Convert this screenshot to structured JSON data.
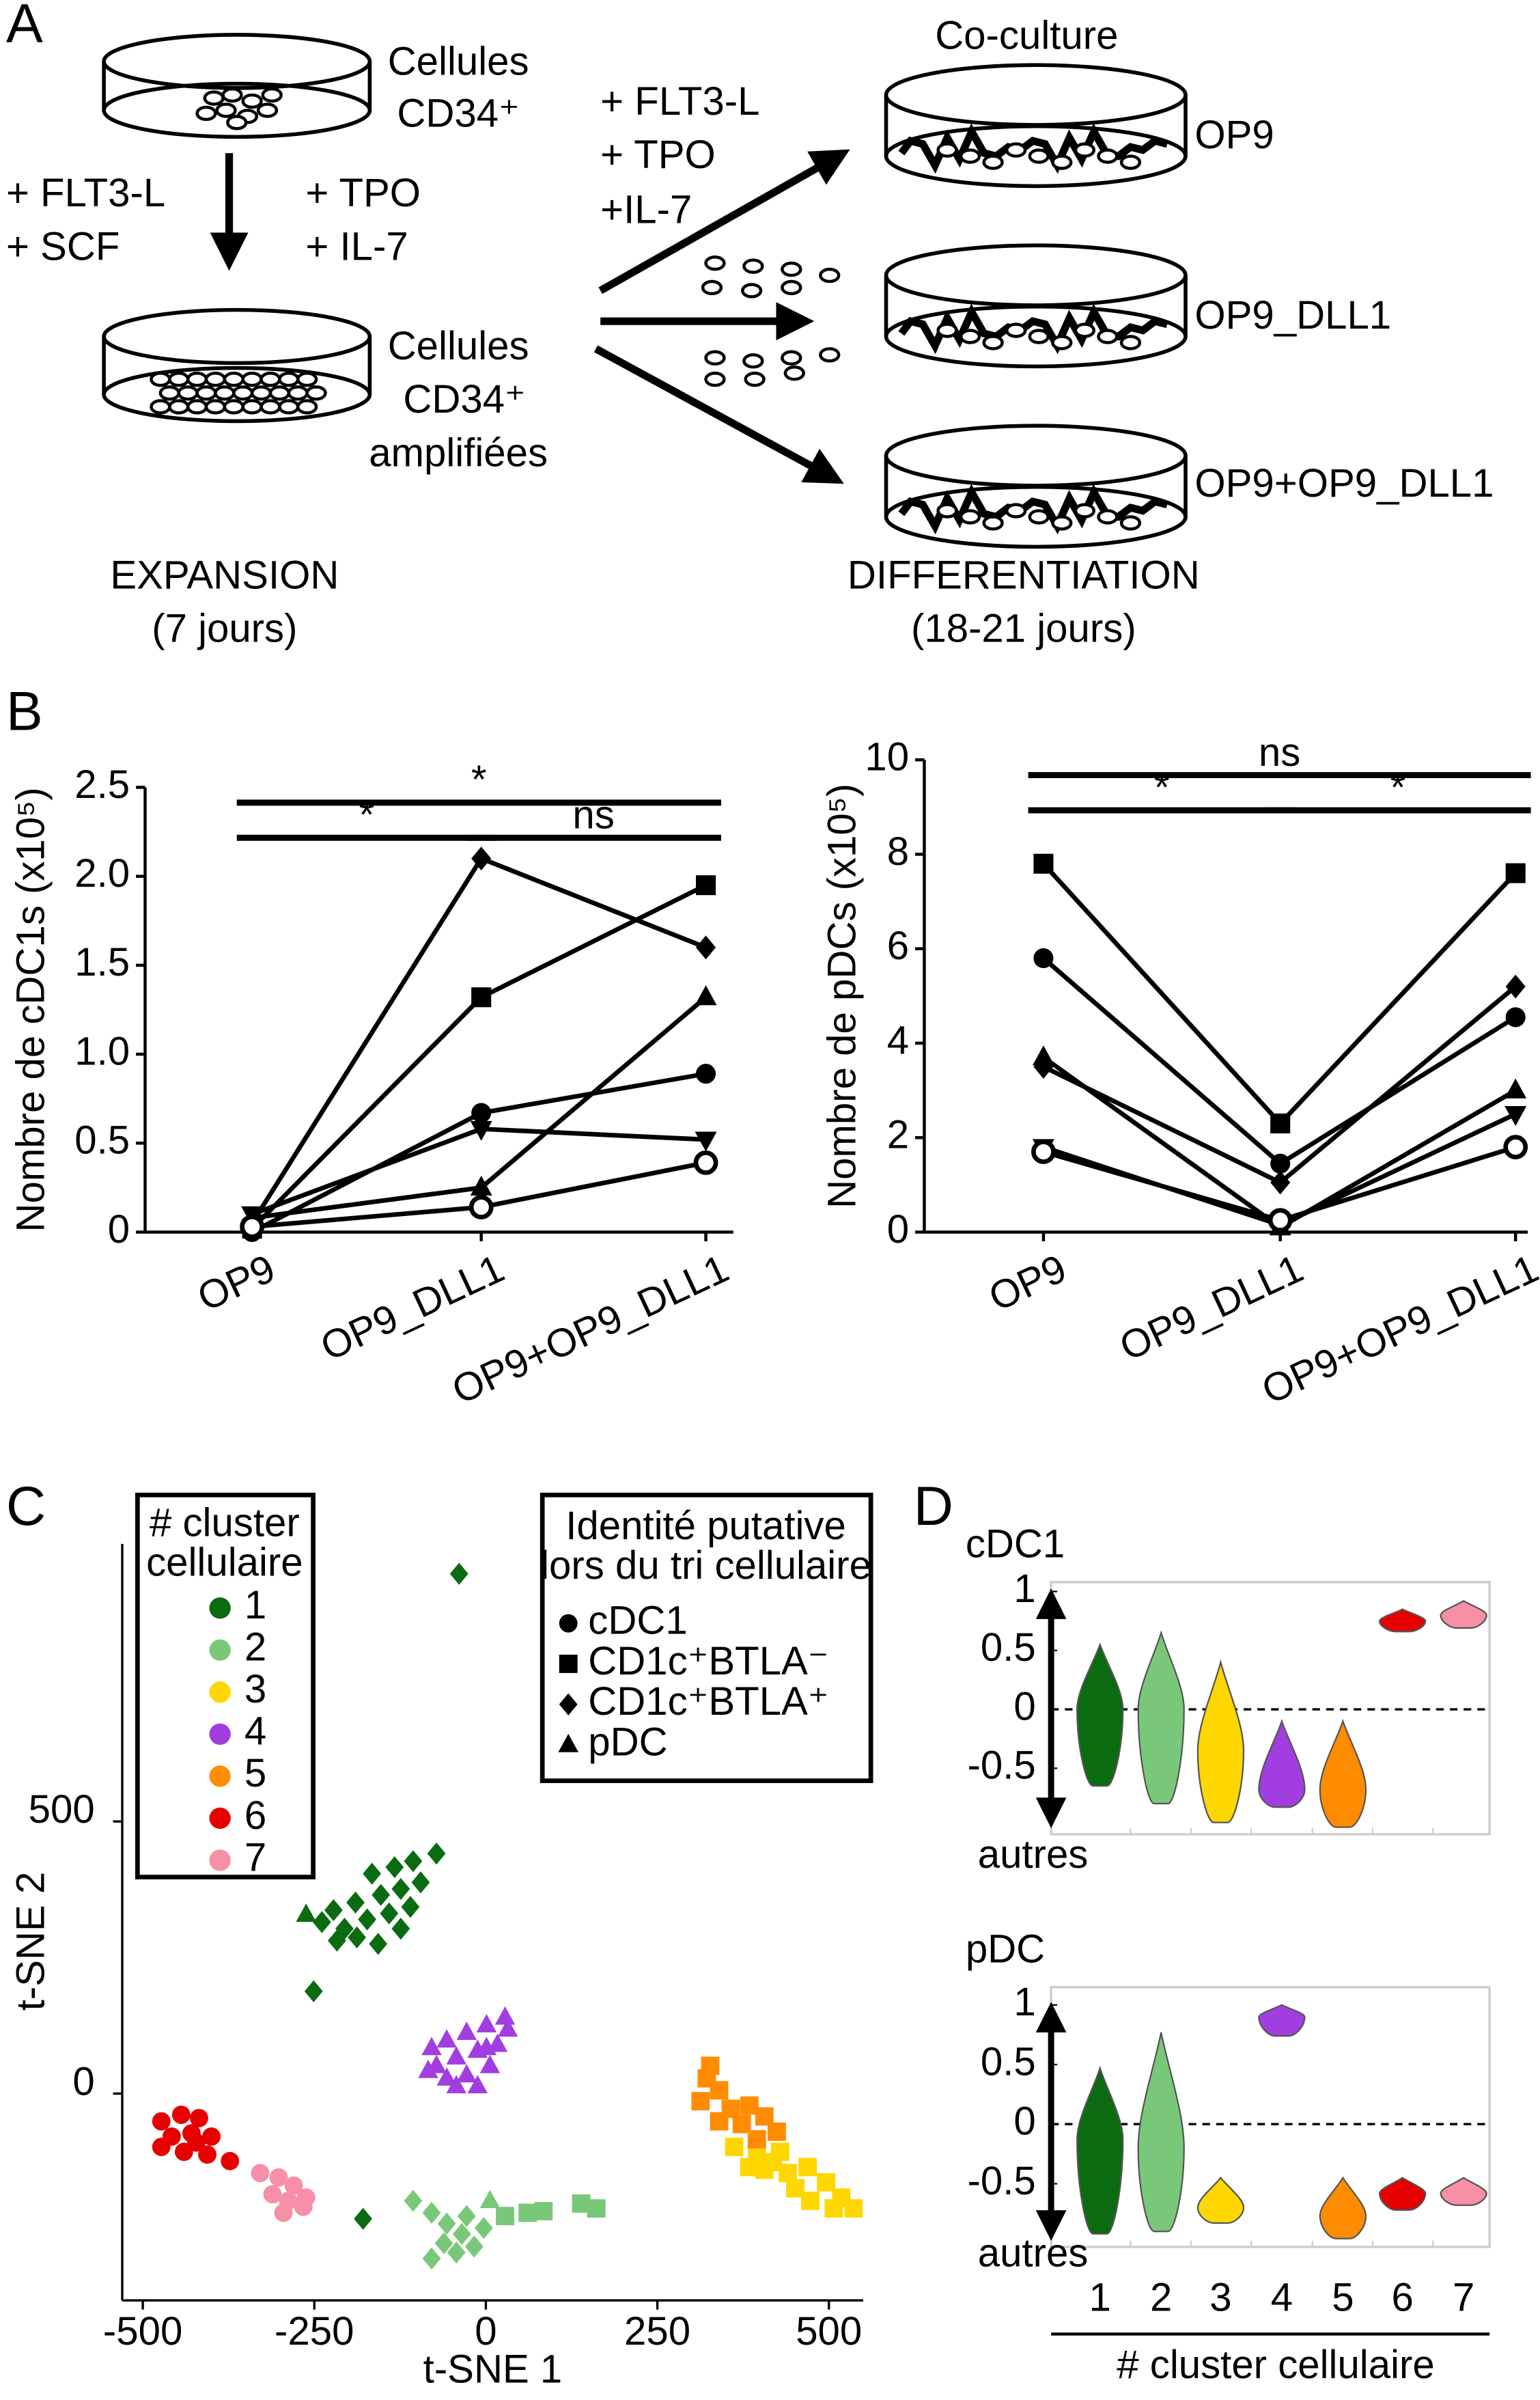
{
  "panel_labels": [
    "A",
    "B",
    "C",
    "D"
  ],
  "expansion": {
    "start_label": [
      "Cellules",
      "CD34⁺"
    ],
    "factors_left": [
      "+ FLT3-L",
      "+ SCF"
    ],
    "factors_right": [
      "+ TPO",
      "+ IL-7"
    ],
    "end_label": [
      "Cellules",
      "CD34⁺",
      "amplifiées"
    ],
    "caption": [
      "EXPANSION",
      "(7 jours)"
    ]
  },
  "differentiation": {
    "factors": [
      "+ FLT3-L",
      "+ TPO",
      "+IL-7"
    ],
    "title": "Co-culture",
    "conditions": [
      "OP9",
      "OP9_DLL1",
      "OP9+OP9_DLL1"
    ],
    "caption": [
      "DIFFERENTIATION",
      "(18-21 jours)"
    ]
  },
  "chart_data": [
    {
      "type": "line",
      "y_label": "Nombre de cDC1s (x10⁵)",
      "categories": [
        "OP9",
        "OP9_DLL1",
        "OP9+OP9_DLL1"
      ],
      "ylim": [
        0,
        2.5
      ],
      "yticks": [
        0,
        0.5,
        {
          "value": 1,
          "label": "1.0"
        },
        1.5,
        {
          "value": 2,
          "label": "2.0"
        },
        2.5
      ],
      "series": [
        {
          "marker": "square",
          "color": "#000000",
          "values": [
            0.02,
            1.32,
            1.95
          ]
        },
        {
          "marker": "diamond",
          "color": "#000000",
          "values": [
            0.05,
            2.1,
            1.6
          ]
        },
        {
          "marker": "triangle",
          "color": "#000000",
          "values": [
            0.08,
            0.25,
            1.32
          ]
        },
        {
          "marker": "circle",
          "color": "#000000",
          "values": [
            0.0,
            0.67,
            0.89
          ]
        },
        {
          "marker": "triangle-down",
          "color": "#000000",
          "values": [
            0.1,
            0.58,
            0.52
          ]
        },
        {
          "marker": "open-circle",
          "color": "#000000",
          "values": [
            0.03,
            0.14,
            0.39
          ]
        }
      ],
      "annotations": [
        {
          "text": "*",
          "from": 0,
          "to": 2
        },
        {
          "text": "*",
          "from": 0,
          "to": 1
        },
        {
          "text": "ns",
          "from": 1,
          "to": 2
        }
      ]
    },
    {
      "type": "line",
      "y_label": "Nombre de pDCs (x10⁵)",
      "categories": [
        "OP9",
        "OP9_DLL1",
        "OP9+OP9_DLL1"
      ],
      "ylim": [
        0,
        10
      ],
      "yticks": [
        0,
        2,
        4,
        6,
        8,
        10
      ],
      "series": [
        {
          "marker": "square",
          "color": "#000000",
          "values": [
            7.8,
            2.3,
            7.6
          ]
        },
        {
          "marker": "circle",
          "color": "#000000",
          "values": [
            5.8,
            1.45,
            4.55
          ]
        },
        {
          "marker": "diamond",
          "color": "#000000",
          "values": [
            3.5,
            1.05,
            5.2
          ]
        },
        {
          "marker": "triangle",
          "color": "#000000",
          "values": [
            3.7,
            0.1,
            3.0
          ]
        },
        {
          "marker": "triangle-down",
          "color": "#000000",
          "values": [
            1.8,
            0.15,
            2.5
          ]
        },
        {
          "marker": "open-circle",
          "color": "#000000",
          "values": [
            1.7,
            0.25,
            1.8
          ]
        }
      ],
      "annotations": [
        {
          "text": "ns",
          "from": 0,
          "to": 2
        },
        {
          "text": "*",
          "from": 0,
          "to": 1
        },
        {
          "text": "*",
          "from": 1,
          "to": 2
        }
      ]
    },
    {
      "type": "scatter",
      "x_label": "t-SNE 1",
      "y_label": "t-SNE 2",
      "xlim": [
        -530,
        550
      ],
      "ylim": [
        -380,
        1010
      ],
      "xticks": [
        -500,
        -250,
        0,
        250,
        500
      ],
      "yticks": [
        0,
        500
      ],
      "cluster_legend": {
        "title": [
          "# cluster",
          "cellulaire"
        ]
      },
      "identity_legend": {
        "title": [
          "Identité putative",
          "lors du tri cellulaire"
        ],
        "items": [
          {
            "label": "cDC1",
            "marker": "circle"
          },
          {
            "label": "CD1c⁺BTLA⁻",
            "marker": "square"
          },
          {
            "label": "CD1c⁺BTLA⁺",
            "marker": "diamond"
          },
          {
            "label": "pDC",
            "marker": "triangle"
          }
        ]
      },
      "series": [
        {
          "name": "1",
          "color": "#0b6b10",
          "x": [
            -72,
            -106,
            -133,
            -166,
            -95,
            -124,
            -153,
            -190,
            -222,
            -110,
            -141,
            -173,
            -206,
            -124,
            -157,
            -188,
            -217,
            -239,
            -39,
            -251,
            -179,
            -262
          ],
          "y": [
            441,
            427,
            416,
            404,
            388,
            376,
            365,
            351,
            337,
            343,
            331,
            320,
            303,
            303,
            275,
            287,
            281,
            315,
            955,
            188,
            -230,
            329
          ],
          "markers": [
            "diamond",
            "diamond",
            "diamond",
            "diamond",
            "diamond",
            "diamond",
            "diamond",
            "diamond",
            "diamond",
            "diamond",
            "diamond",
            "diamond",
            "diamond",
            "diamond",
            "diamond",
            "diamond",
            "diamond",
            "diamond",
            "diamond",
            "diamond",
            "diamond",
            "triangle"
          ]
        },
        {
          "name": "2",
          "color": "#79c879",
          "x": [
            -106,
            -79,
            -57,
            -35,
            -61,
            -79,
            -43,
            -17,
            -3,
            -28,
            6,
            28,
            61,
            84,
            139,
            161
          ],
          "y": [
            -197,
            -219,
            -239,
            -258,
            -275,
            -303,
            -292,
            -281,
            -247,
            -225,
            -197,
            -225,
            -219,
            -216,
            -202,
            -211
          ],
          "markers": [
            "diamond",
            "diamond",
            "diamond",
            "diamond",
            "diamond",
            "diamond",
            "diamond",
            "diamond",
            "diamond",
            "diamond",
            "triangle",
            "square",
            "square",
            "square",
            "square",
            "square"
          ]
        },
        {
          "name": "3",
          "color": "#ffd700",
          "x": [
            362,
            395,
            429,
            406,
            440,
            469,
            451,
            496,
            518,
            473,
            507,
            536,
            418,
            384
          ],
          "y": [
            -98,
            -112,
            -107,
            -140,
            -146,
            -135,
            -174,
            -163,
            -191,
            -197,
            -211,
            -211,
            -126,
            -135
          ],
          "markers": [
            "square",
            "square",
            "square",
            "square",
            "square",
            "square",
            "square",
            "square",
            "square",
            "square",
            "square",
            "square",
            "square",
            "square"
          ]
        },
        {
          "name": "4",
          "color": "#a23ee0",
          "x": [
            28,
            1,
            -28,
            -57,
            -79,
            17,
            -12,
            -43,
            -72,
            6,
            -28,
            -57,
            -84,
            -12,
            -43,
            32,
            1
          ],
          "y": [
            140,
            126,
            112,
            98,
            84,
            90,
            79,
            67,
            51,
            51,
            34,
            28,
            42,
            14,
            14,
            118,
            84
          ],
          "markers": [
            "triangle",
            "triangle",
            "triangle",
            "triangle",
            "triangle",
            "triangle",
            "triangle",
            "triangle",
            "triangle",
            "triangle",
            "triangle",
            "triangle",
            "triangle",
            "triangle",
            "triangle",
            "triangle",
            "triangle"
          ]
        },
        {
          "name": "5",
          "color": "#ff8c00",
          "x": [
            322,
            340,
            313,
            357,
            384,
            340,
            373,
            406,
            424,
            395,
            327
          ],
          "y": [
            28,
            6,
            -14,
            -28,
            -22,
            -51,
            -56,
            -42,
            -70,
            -84,
            51
          ],
          "markers": [
            "square",
            "square",
            "square",
            "square",
            "square",
            "square",
            "square",
            "square",
            "square",
            "square",
            "square"
          ]
        },
        {
          "name": "6",
          "color": "#e60000",
          "x": [
            -473,
            -444,
            -418,
            -458,
            -429,
            -400,
            -473,
            -440,
            -406,
            -373,
            -422
          ],
          "y": [
            -51,
            -39,
            -45,
            -79,
            -73,
            -79,
            -98,
            -107,
            -112,
            -124,
            -90
          ],
          "markers": [
            "circle",
            "circle",
            "circle",
            "circle",
            "circle",
            "circle",
            "circle",
            "circle",
            "circle",
            "circle",
            "circle"
          ]
        },
        {
          "name": "7",
          "color": "#f78fa7",
          "x": [
            -329,
            -302,
            -280,
            -311,
            -288,
            -266,
            -295,
            -262
          ],
          "y": [
            -146,
            -154,
            -169,
            -185,
            -197,
            -208,
            -219,
            -191
          ],
          "markers": [
            "circle",
            "circle",
            "circle",
            "circle",
            "circle",
            "circle",
            "circle",
            "circle"
          ]
        }
      ]
    },
    {
      "type": "violin",
      "title": "cDC1",
      "y_annotation": "autres",
      "ylim": [
        -1.06,
        1.08
      ],
      "yticks": [
        1,
        0.5,
        0,
        -0.5
      ],
      "colors": [
        "#0b6b10",
        "#79c879",
        "#ffd700",
        "#a23ee0",
        "#ff8c00",
        "#e60000",
        "#f78fa7"
      ],
      "high": [
        0.55,
        0.65,
        0.4,
        -0.1,
        -0.1,
        0.85,
        0.92
      ],
      "low": [
        -0.65,
        -0.8,
        -0.96,
        -0.83,
        -1.0,
        0.66,
        0.69
      ],
      "peak": [
        0.0,
        0.0,
        -0.35,
        -0.68,
        -0.68,
        0.75,
        0.8
      ]
    },
    {
      "type": "violin",
      "title": "pDC",
      "y_annotation": "autres",
      "x_label": "# cluster cellulaire",
      "categories": [
        "1",
        "2",
        "3",
        "4",
        "5",
        "6",
        "7"
      ],
      "ylim": [
        -1.03,
        1.15
      ],
      "yticks": [
        1,
        0.5,
        0,
        -0.5
      ],
      "colors": [
        "#0b6b10",
        "#79c879",
        "#ffd700",
        "#a23ee0",
        "#ff8c00",
        "#e60000",
        "#f78fa7"
      ],
      "high": [
        0.47,
        0.77,
        -0.45,
        1.0,
        -0.45,
        -0.45,
        -0.45
      ],
      "low": [
        -0.92,
        -0.9,
        -0.83,
        0.74,
        -0.96,
        -0.72,
        -0.68
      ],
      "peak": [
        -0.13,
        -0.2,
        -0.7,
        0.9,
        -0.77,
        -0.58,
        -0.58
      ]
    }
  ]
}
